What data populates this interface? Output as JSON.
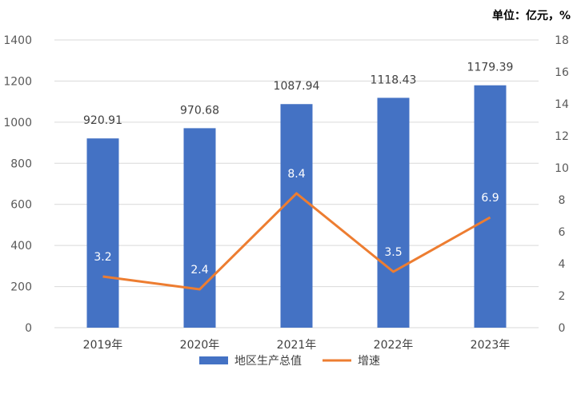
{
  "chart_data": {
    "type": "bar",
    "unit_label": "单位：亿元，%",
    "categories": [
      "2019年",
      "2020年",
      "2021年",
      "2022年",
      "2023年"
    ],
    "series": [
      {
        "name": "地区生产总值",
        "type": "bar",
        "axis": "left",
        "values": [
          920.91,
          970.68,
          1087.94,
          1118.43,
          1179.39
        ],
        "labels": [
          "920.91",
          "970.68",
          "1087.94",
          "1118.43",
          "1179.39"
        ]
      },
      {
        "name": "增速",
        "type": "line",
        "axis": "right",
        "values": [
          3.2,
          2.4,
          8.4,
          3.5,
          6.9
        ],
        "labels": [
          "3.2",
          "2.4",
          "8.4",
          "3.5",
          "6.9"
        ]
      }
    ],
    "y_left": {
      "min": 0,
      "max": 1400,
      "ticks": [
        "0",
        "200",
        "400",
        "600",
        "800",
        "1000",
        "1200",
        "1400"
      ]
    },
    "y_right": {
      "min": 0,
      "max": 18,
      "ticks": [
        "0",
        "2",
        "4",
        "6",
        "8",
        "10",
        "12",
        "14",
        "16",
        "18"
      ]
    },
    "grid": true,
    "legend_position": "bottom",
    "colors": {
      "bar": "#4472C4",
      "line": "#ED7D31",
      "grid": "#D9D9D9"
    }
  }
}
